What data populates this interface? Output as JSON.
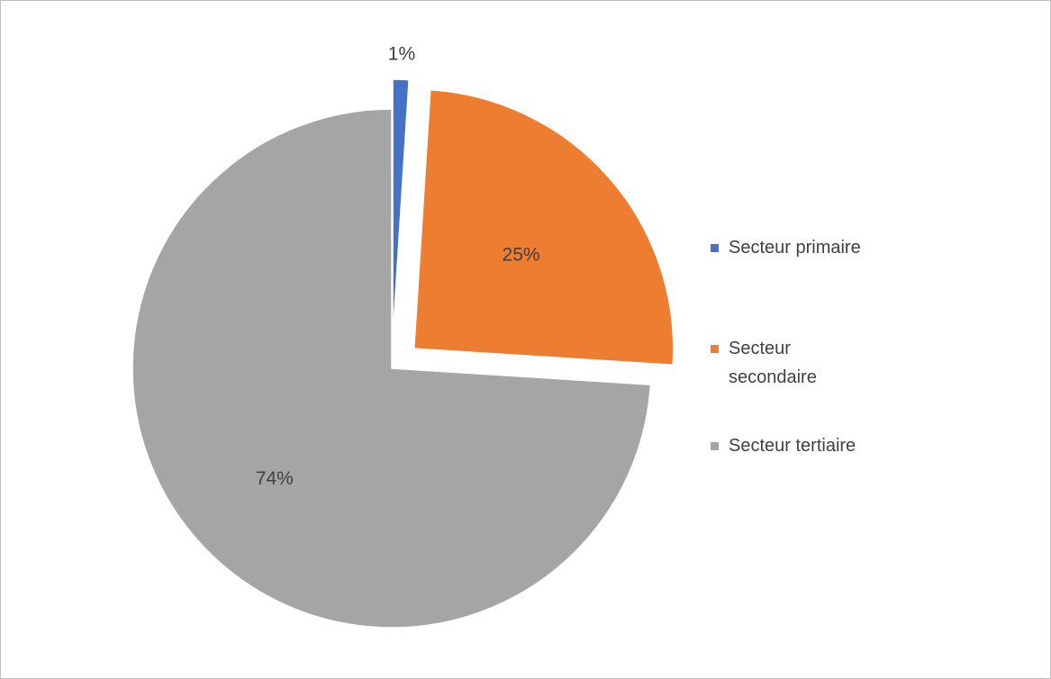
{
  "chart_data": {
    "type": "pie",
    "title": "",
    "categories": [
      "Secteur primaire",
      "Secteur secondaire",
      "Secteur tertiaire"
    ],
    "values": [
      1,
      25,
      74
    ],
    "labels": [
      "1%",
      "25%",
      "74%"
    ],
    "colors": [
      "#4472c4",
      "#ed7d31",
      "#a5a5a5"
    ],
    "exploded": [
      true,
      true,
      false
    ],
    "legend_position": "right"
  },
  "legend": {
    "items": [
      {
        "label": "Secteur primaire",
        "color": "#4472c4"
      },
      {
        "label": "Secteur secondaire",
        "color": "#ed7d31"
      },
      {
        "label": "Secteur tertiaire",
        "color": "#a5a5a5"
      }
    ]
  }
}
